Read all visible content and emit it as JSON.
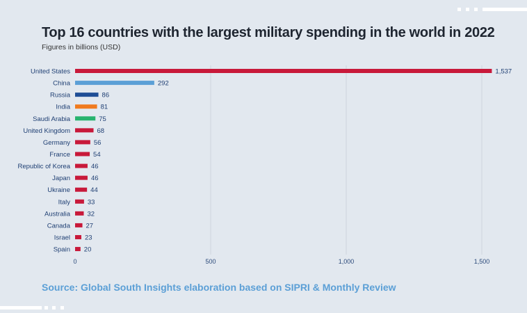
{
  "chart_data": {
    "type": "bar",
    "orientation": "horizontal",
    "title": "Top 16 countries with the largest military spending in the world in 2022",
    "subtitle": "Figures in billions (USD)",
    "categories": [
      "United States",
      "China",
      "Russia",
      "India",
      "Saudi Arabia",
      "United Kingdom",
      "Germany",
      "France",
      "Republic of Korea",
      "Japan",
      "Ukraine",
      "Italy",
      "Australia",
      "Canada",
      "Israel",
      "Spain"
    ],
    "values": [
      1537,
      292,
      86,
      81,
      75,
      68,
      56,
      54,
      46,
      46,
      44,
      33,
      32,
      27,
      23,
      20
    ],
    "value_labels": [
      "1,537",
      "292",
      "86",
      "81",
      "75",
      "68",
      "56",
      "54",
      "46",
      "46",
      "44",
      "33",
      "32",
      "27",
      "23",
      "20"
    ],
    "colors": [
      "#c8193a",
      "#5b9fd6",
      "#1f4e96",
      "#f07a1e",
      "#27b36e",
      "#c8193a",
      "#c8193a",
      "#c8193a",
      "#c8193a",
      "#c8193a",
      "#c8193a",
      "#c8193a",
      "#c8193a",
      "#c8193a",
      "#c8193a",
      "#c8193a"
    ],
    "xlim": [
      0,
      1600
    ],
    "xticks": [
      0,
      500,
      1000,
      1500
    ],
    "xtick_labels": [
      "0",
      "500",
      "1,000",
      "1,500"
    ],
    "grid": true
  },
  "source": "Source: Global South Insights elaboration based on SIPRI & Monthly Review"
}
